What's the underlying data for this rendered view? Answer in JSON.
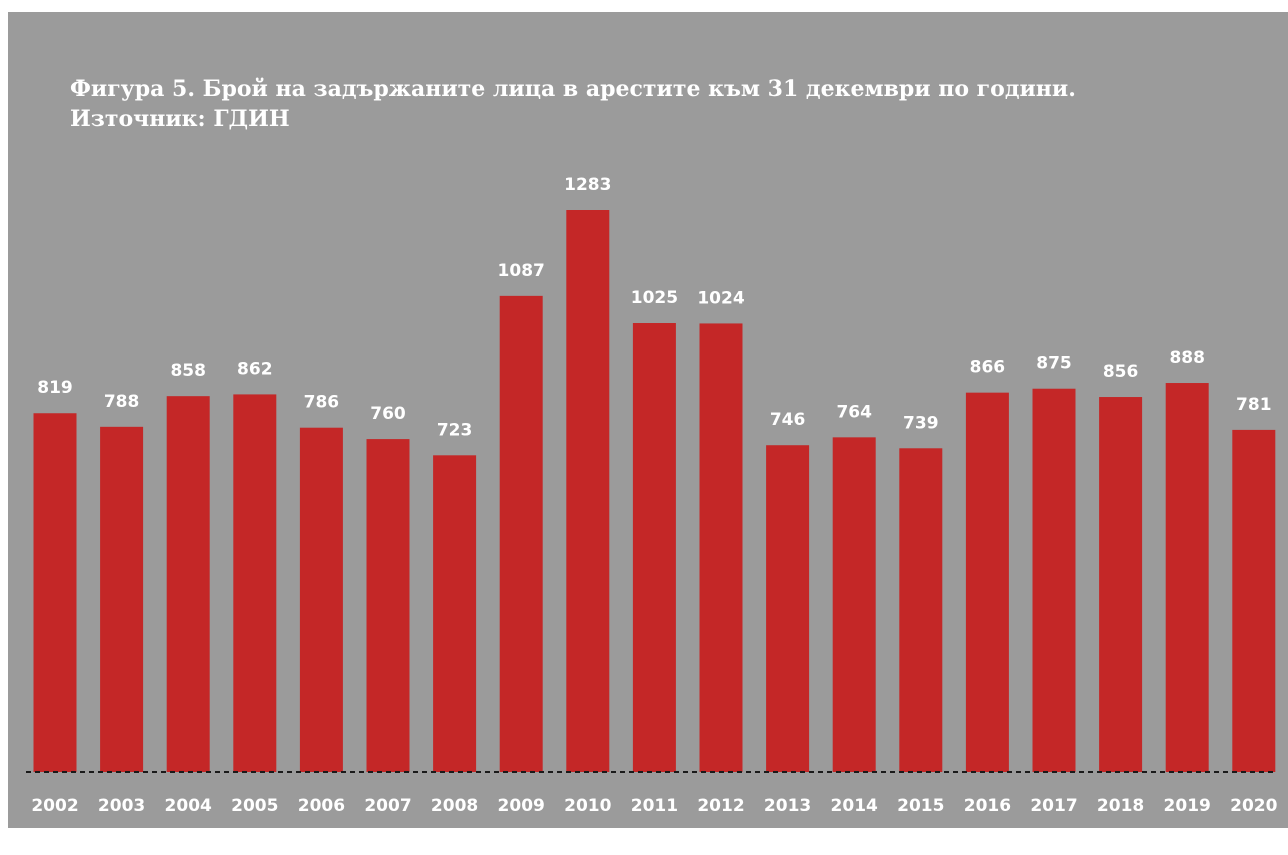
{
  "title": {
    "line1": "Фигура 5. Брой на задържаните лица в арестите към 31 декември по години.",
    "line2": "Източник: ГДИН"
  },
  "colors": {
    "background": "#9b9b9b",
    "bar": "#c42727",
    "text": "#ffffff",
    "baseline": "#1a1a1a"
  },
  "chart_data": {
    "type": "bar",
    "title": "Фигура 5. Брой на задържаните лица в арестите към 31 декември по години. Източник: ГДИН",
    "categories": [
      "2002",
      "2003",
      "2004",
      "2005",
      "2006",
      "2007",
      "2008",
      "2009",
      "2010",
      "2011",
      "2012",
      "2013",
      "2014",
      "2015",
      "2016",
      "2017",
      "2018",
      "2019",
      "2020"
    ],
    "values": [
      819,
      788,
      858,
      862,
      786,
      760,
      723,
      1087,
      1283,
      1025,
      1024,
      746,
      764,
      739,
      866,
      875,
      856,
      888,
      781
    ],
    "xlabel": "",
    "ylabel": "",
    "ylim": [
      0,
      1283
    ],
    "grid": false,
    "legend": "none",
    "data_labels": true,
    "baseline_style": "dashed"
  }
}
